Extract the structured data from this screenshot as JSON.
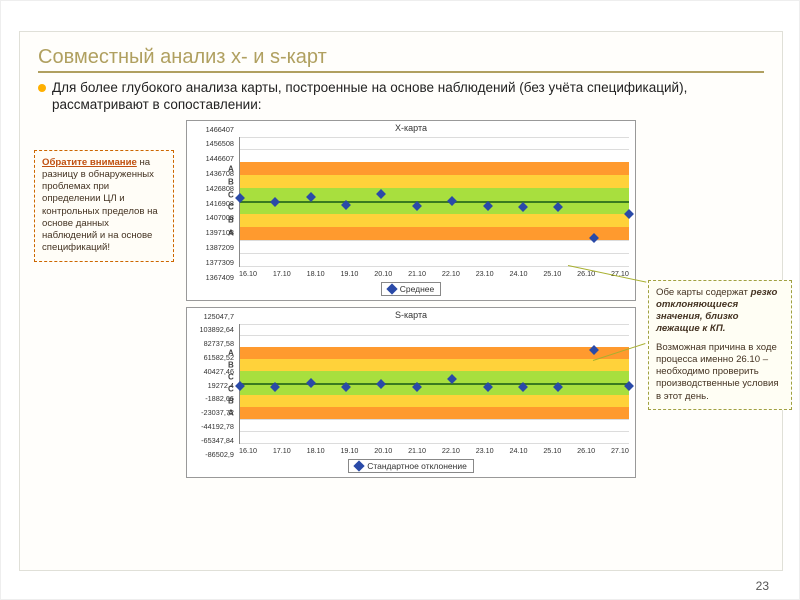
{
  "slide": {
    "title": "Совместный анализ x- и s-карт",
    "bullet": "Для более глубокого анализа карты, построенные на основе наблюдений (без учёта спецификаций), рассматривают в сопоставлении:",
    "page_number": "23"
  },
  "left_note": {
    "heading": "Обратите внимание",
    "body": " на разницу в обнаруженных проблемах при определении ЦЛ и контрольных пределов на основе данных наблюдений и на основе спецификаций!"
  },
  "right_note": {
    "line1_a": "Обе карты содержат ",
    "line1_b": "резко отклоняющиеся значения, близко лежащие к КП.",
    "line2": "Возможная причина в ходе процесса именно 26.10 – необходимо проверить производственные условия в этот день."
  },
  "charts": {
    "top": {
      "title": "X-карта",
      "legend": "Среднее",
      "y_ticks": [
        "1466407",
        "1456508",
        "1446607",
        "1436708",
        "1426808",
        "1416908",
        "1407008",
        "1397108",
        "1387209",
        "1377309",
        "1367409"
      ],
      "x_ticks": [
        "16.10",
        "17.10",
        "18.10",
        "19.10",
        "20.10",
        "21.10",
        "22.10",
        "23.10",
        "24.10",
        "25.10",
        "26.10",
        "27.10"
      ],
      "ylim": [
        1367409,
        1466407
      ],
      "zones": {
        "colors": {
          "A": "#ff9a2e",
          "B": "#ffd23a",
          "C": "#a8df3e"
        },
        "A_upper": [
          1436708,
          1446607
        ],
        "B_upper": [
          1426808,
          1436708
        ],
        "C_upper": [
          1416908,
          1426808
        ],
        "C_lower": [
          1407008,
          1416908
        ],
        "B_lower": [
          1397108,
          1407008
        ],
        "A_lower": [
          1387209,
          1397108
        ],
        "center_line": 1416908
      },
      "zone_label_letters": [
        "A",
        "B",
        "C",
        "C",
        "B",
        "A"
      ],
      "points_y": [
        1419000,
        1416000,
        1420000,
        1414000,
        1422000,
        1413000,
        1417000,
        1413000,
        1412000,
        1412000,
        1388500,
        1407000
      ],
      "marker_color": "#2a4aa8",
      "background": "#ffffff",
      "grid_color": "#dcdcdc",
      "font_size_axis": 7.3
    },
    "bottom": {
      "title": "S-карта",
      "legend": "Стандартное отклонение",
      "y_ticks": [
        "125047,7",
        "103892,64",
        "82737,58",
        "61582,52",
        "40427,46",
        "19272,4",
        "-1882,66",
        "-23037,72",
        "-44192,78",
        "-65347,84",
        "-86502,9"
      ],
      "x_ticks": [
        "16.10",
        "17.10",
        "18.10",
        "19.10",
        "20.10",
        "21.10",
        "22.10",
        "23.10",
        "24.10",
        "25.10",
        "26.10",
        "27.10"
      ],
      "ylim": [
        -86502.9,
        125047.7
      ],
      "zones": {
        "colors": {
          "A": "#ff9a2e",
          "B": "#ffd23a",
          "C": "#a8df3e"
        },
        "A_upper": [
          61582.52,
          82737.58
        ],
        "B_upper": [
          40427.46,
          61582.52
        ],
        "C_upper": [
          19272.4,
          40427.46
        ],
        "C_lower": [
          -1882.66,
          19272.4
        ],
        "B_lower": [
          -23037.72,
          -1882.66
        ],
        "A_lower": [
          -44192.78,
          -23037.72
        ],
        "center_line": 19272.4
      },
      "zone_label_letters": [
        "A",
        "B",
        "C",
        "C",
        "B",
        "A"
      ],
      "points_y": [
        13500,
        12400,
        18800,
        11800,
        17800,
        12400,
        27200,
        12000,
        11800,
        11800,
        78200,
        14000
      ],
      "marker_color": "#2a4aa8",
      "background": "#ffffff",
      "grid_color": "#dcdcdc",
      "font_size_axis": 7.3
    }
  },
  "colors": {
    "title": "#b0a060",
    "bullet_dot": "#ffb000",
    "left_note_border": "#cc6600",
    "right_note_border": "#a0a040"
  }
}
